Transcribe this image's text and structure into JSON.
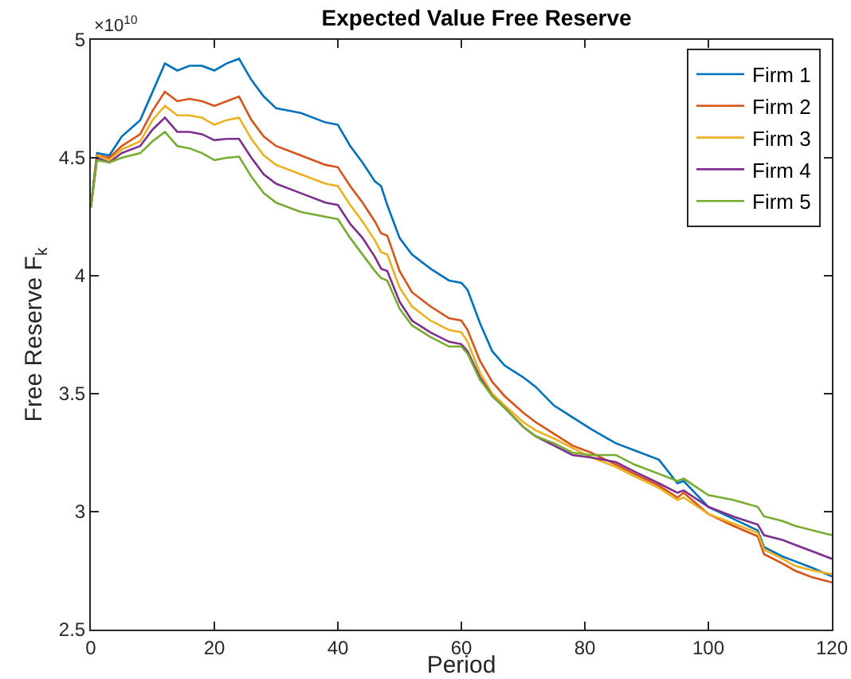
{
  "chart_data": {
    "type": "line",
    "title": "Expected Value Free Reserve",
    "xlabel": "Period",
    "ylabel": "Free Reserve F$_{k}$",
    "annotations": [
      "×10$^{10}$"
    ],
    "x": [
      0,
      1,
      3,
      5,
      8,
      10,
      12,
      14,
      16,
      18,
      20,
      22,
      24,
      26,
      28,
      30,
      34,
      38,
      40,
      42,
      44,
      46,
      47,
      48,
      50,
      52,
      55,
      58,
      60,
      61,
      63,
      65,
      67,
      70,
      72,
      75,
      78,
      81,
      85,
      88,
      92,
      95,
      96,
      100,
      104,
      108,
      109,
      112,
      114,
      117,
      120
    ],
    "xlim": [
      0,
      120
    ],
    "xticks": [
      0,
      20,
      40,
      60,
      80,
      100,
      120
    ],
    "ylim": [
      2.5,
      5
    ],
    "yticks": [
      2.5,
      3,
      3.5,
      4,
      4.5,
      5
    ],
    "grid": false,
    "legend": "top right",
    "marker": "none",
    "line_style": "solid",
    "series": [
      {
        "name": "Firm 1",
        "color": "#0072bd",
        "values": [
          4.29,
          4.52,
          4.51,
          4.59,
          4.66,
          4.78,
          4.9,
          4.87,
          4.89,
          4.89,
          4.87,
          4.9,
          4.92,
          4.83,
          4.76,
          4.71,
          4.69,
          4.65,
          4.64,
          4.55,
          4.48,
          4.4,
          4.38,
          4.3,
          4.16,
          4.09,
          4.03,
          3.98,
          3.97,
          3.94,
          3.8,
          3.68,
          3.62,
          3.57,
          3.53,
          3.45,
          3.4,
          3.35,
          3.29,
          3.26,
          3.22,
          3.12,
          3.13,
          3.02,
          2.97,
          2.92,
          2.85,
          2.81,
          2.79,
          2.76,
          2.725
        ]
      },
      {
        "name": "Firm 2",
        "color": "#d95319",
        "values": [
          4.29,
          4.51,
          4.5,
          4.55,
          4.6,
          4.7,
          4.78,
          4.74,
          4.75,
          4.74,
          4.72,
          4.74,
          4.76,
          4.66,
          4.59,
          4.55,
          4.51,
          4.47,
          4.46,
          4.38,
          4.31,
          4.23,
          4.18,
          4.17,
          4.02,
          3.93,
          3.87,
          3.82,
          3.81,
          3.77,
          3.64,
          3.55,
          3.49,
          3.42,
          3.38,
          3.33,
          3.28,
          3.25,
          3.2,
          3.16,
          3.11,
          3.06,
          3.08,
          2.99,
          2.94,
          2.895,
          2.82,
          2.78,
          2.75,
          2.72,
          2.7
        ]
      },
      {
        "name": "Firm 3",
        "color": "#edb120",
        "values": [
          4.29,
          4.51,
          4.49,
          4.535,
          4.57,
          4.66,
          4.72,
          4.68,
          4.68,
          4.67,
          4.64,
          4.66,
          4.67,
          4.58,
          4.51,
          4.47,
          4.43,
          4.39,
          4.38,
          4.3,
          4.23,
          4.15,
          4.1,
          4.09,
          3.95,
          3.87,
          3.81,
          3.77,
          3.76,
          3.72,
          3.59,
          3.5,
          3.45,
          3.38,
          3.345,
          3.31,
          3.27,
          3.23,
          3.19,
          3.15,
          3.1,
          3.05,
          3.06,
          2.99,
          2.95,
          2.91,
          2.84,
          2.8,
          2.77,
          2.75,
          2.735
        ]
      },
      {
        "name": "Firm 4",
        "color": "#7e2f8e",
        "values": [
          4.29,
          4.5,
          4.48,
          4.52,
          4.55,
          4.62,
          4.67,
          4.61,
          4.61,
          4.6,
          4.575,
          4.58,
          4.58,
          4.5,
          4.43,
          4.39,
          4.35,
          4.31,
          4.3,
          4.22,
          4.16,
          4.08,
          4.03,
          4.02,
          3.89,
          3.81,
          3.76,
          3.72,
          3.71,
          3.68,
          3.57,
          3.49,
          3.44,
          3.36,
          3.32,
          3.28,
          3.24,
          3.23,
          3.21,
          3.17,
          3.12,
          3.08,
          3.09,
          3.02,
          2.98,
          2.945,
          2.9,
          2.88,
          2.86,
          2.83,
          2.8
        ]
      },
      {
        "name": "Firm 5",
        "color": "#77ac30",
        "values": [
          4.29,
          4.49,
          4.48,
          4.5,
          4.52,
          4.57,
          4.61,
          4.55,
          4.54,
          4.52,
          4.49,
          4.5,
          4.505,
          4.42,
          4.35,
          4.31,
          4.27,
          4.25,
          4.24,
          4.16,
          4.09,
          4.02,
          3.99,
          3.98,
          3.86,
          3.79,
          3.74,
          3.7,
          3.7,
          3.67,
          3.56,
          3.49,
          3.44,
          3.36,
          3.32,
          3.29,
          3.25,
          3.24,
          3.24,
          3.2,
          3.16,
          3.13,
          3.14,
          3.07,
          3.05,
          3.02,
          2.98,
          2.96,
          2.94,
          2.92,
          2.9
        ]
      }
    ]
  }
}
